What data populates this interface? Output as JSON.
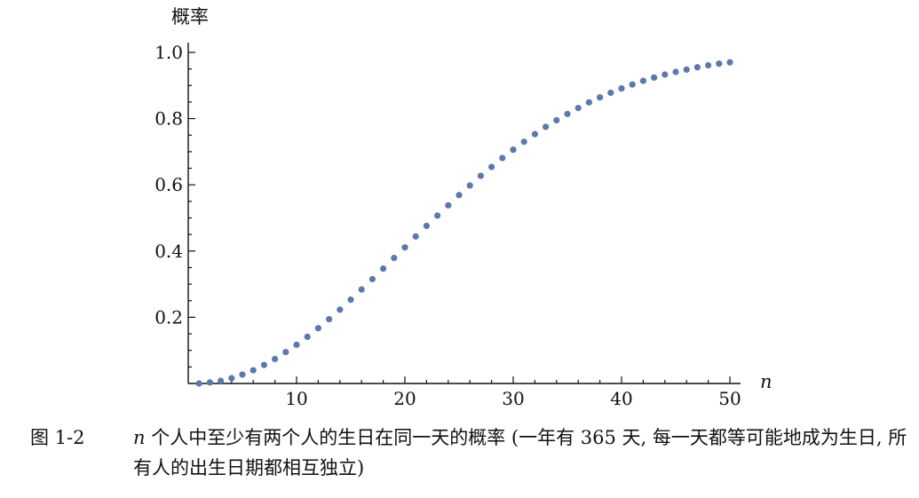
{
  "chart_data": {
    "type": "scatter",
    "ylabel": "概率",
    "xlabel": "n",
    "xlim": [
      0,
      50
    ],
    "ylim": [
      0,
      1.0
    ],
    "x_ticks": [
      "10",
      "20",
      "30",
      "40",
      "50"
    ],
    "y_ticks": [
      "0.2",
      "0.4",
      "0.6",
      "0.8",
      "1.0"
    ],
    "grid": false,
    "series": [
      {
        "color": "#5b79ad",
        "points": [
          [
            1,
            0.0
          ],
          [
            2,
            0.003
          ],
          [
            3,
            0.008
          ],
          [
            4,
            0.016
          ],
          [
            5,
            0.027
          ],
          [
            6,
            0.04
          ],
          [
            7,
            0.056
          ],
          [
            8,
            0.074
          ],
          [
            9,
            0.095
          ],
          [
            10,
            0.117
          ],
          [
            11,
            0.141
          ],
          [
            12,
            0.167
          ],
          [
            13,
            0.194
          ],
          [
            14,
            0.223
          ],
          [
            15,
            0.253
          ],
          [
            16,
            0.284
          ],
          [
            17,
            0.315
          ],
          [
            18,
            0.347
          ],
          [
            19,
            0.379
          ],
          [
            20,
            0.411
          ],
          [
            21,
            0.444
          ],
          [
            22,
            0.476
          ],
          [
            23,
            0.507
          ],
          [
            24,
            0.538
          ],
          [
            25,
            0.569
          ],
          [
            26,
            0.598
          ],
          [
            27,
            0.627
          ],
          [
            28,
            0.654
          ],
          [
            29,
            0.681
          ],
          [
            30,
            0.706
          ],
          [
            31,
            0.73
          ],
          [
            32,
            0.753
          ],
          [
            33,
            0.775
          ],
          [
            34,
            0.795
          ],
          [
            35,
            0.814
          ],
          [
            36,
            0.832
          ],
          [
            37,
            0.849
          ],
          [
            38,
            0.864
          ],
          [
            39,
            0.878
          ],
          [
            40,
            0.891
          ],
          [
            41,
            0.903
          ],
          [
            42,
            0.914
          ],
          [
            43,
            0.924
          ],
          [
            44,
            0.933
          ],
          [
            45,
            0.941
          ],
          [
            46,
            0.948
          ],
          [
            47,
            0.955
          ],
          [
            48,
            0.961
          ],
          [
            49,
            0.966
          ],
          [
            50,
            0.97
          ]
        ]
      }
    ]
  },
  "caption": {
    "label": "图 1-2",
    "var": "n",
    "text": " 个人中至少有两个人的生日在同一天的概率 (一年有 365 天, 每一天都等可能地成为生日, 所有人的出生日期都相互独立)"
  }
}
